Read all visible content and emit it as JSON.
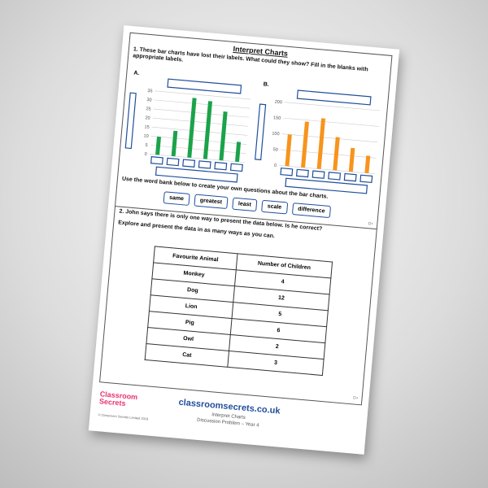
{
  "header": {
    "title": "Interpret Charts"
  },
  "question1": {
    "text": "1. These bar charts have lost their labels. What could they show? Fill in the blanks with appropriate labels.",
    "charts": [
      {
        "label": "A.",
        "color": "#1ba34a",
        "ylim": [
          0,
          35
        ],
        "yticks": [
          0,
          5,
          10,
          15,
          20,
          25,
          30,
          35
        ],
        "values": [
          10,
          14,
          33,
          32,
          27,
          11
        ]
      },
      {
        "label": "B.",
        "color": "#f7941d",
        "ylim": [
          0,
          200
        ],
        "yticks": [
          0,
          50,
          100,
          150,
          200
        ],
        "values": [
          100,
          145,
          160,
          105,
          75,
          55
        ]
      }
    ],
    "word_bank_text": "Use the word bank below to create your own questions about the bar charts.",
    "words": [
      "same",
      "greatest",
      "least",
      "scale",
      "difference"
    ],
    "code": "D+"
  },
  "question2": {
    "text": "2. John says there is only one way to present the data below. Is he correct?",
    "instruction": "Explore and present the data in as many ways as you can.",
    "table": {
      "header": [
        "Favourite Animal",
        "Number of Children"
      ],
      "rows": [
        [
          "Monkey",
          "4"
        ],
        [
          "Dog",
          "12"
        ],
        [
          "Lion",
          "5"
        ],
        [
          "Pig",
          "6"
        ],
        [
          "Owl",
          "2"
        ],
        [
          "Cat",
          "3"
        ]
      ]
    },
    "code": "D+"
  },
  "footer": {
    "logo": "Classroom Secrets",
    "copyright": "© Classroom Secrets Limited 2019",
    "website": "classroomsecrets.co.uk",
    "subtitle": "Interpret Charts",
    "level": "Discussion Problem – Year 4"
  }
}
